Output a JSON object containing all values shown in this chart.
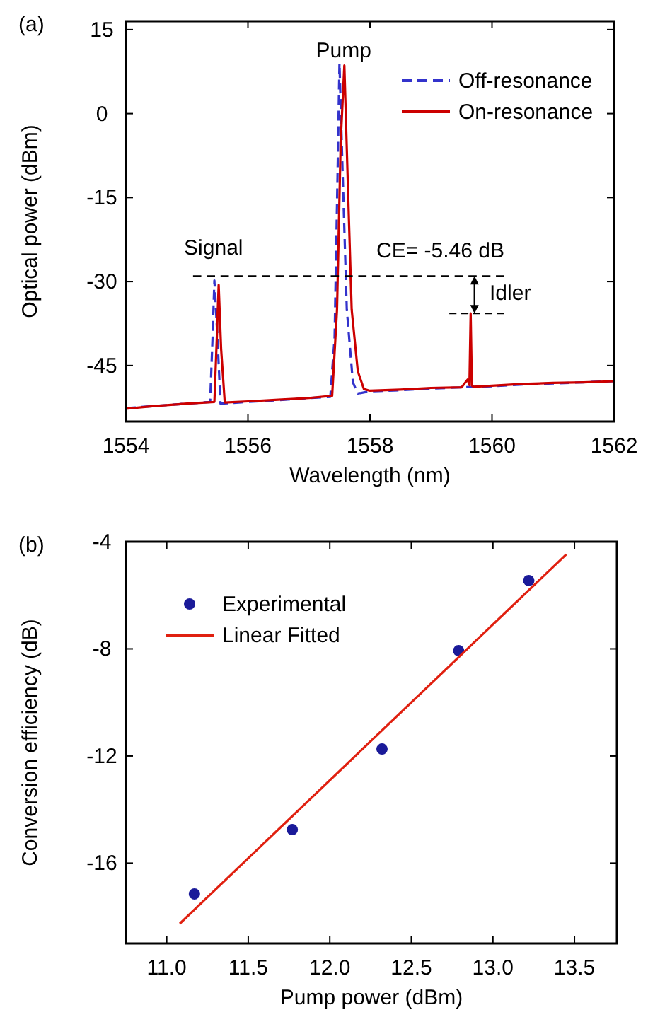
{
  "chart_data": [
    {
      "type": "line",
      "title": "(a)",
      "xlabel": "Wavelength (nm)",
      "ylabel": "Optical power (dBm)",
      "xlim": [
        1554,
        1562
      ],
      "xticks": [
        1554,
        1556,
        1558,
        1560,
        1562
      ],
      "ylim": [
        -55,
        16.5
      ],
      "yticks": [
        15,
        0,
        -15,
        -30,
        -45
      ],
      "legend": "top right",
      "series": [
        {
          "name": "Off-resonance",
          "color": "#3333cc",
          "line_style": "dashed",
          "x": [
            1554,
            1554.5,
            1555,
            1555.38,
            1555.42,
            1555.45,
            1555.5,
            1555.55,
            1556,
            1556.5,
            1557,
            1557.35,
            1557.42,
            1557.47,
            1557.5,
            1557.55,
            1557.62,
            1557.72,
            1557.8,
            1558,
            1558.5,
            1559,
            1559.5,
            1560,
            1560.5,
            1561,
            1561.5,
            1562
          ],
          "values": [
            -52.6,
            -52.2,
            -51.8,
            -51.5,
            -40,
            -29.8,
            -40,
            -51.8,
            -51.5,
            -51.2,
            -50.8,
            -50.6,
            -40,
            -10,
            9.0,
            -10,
            -35,
            -48,
            -50.0,
            -49.6,
            -49.4,
            -49.1,
            -48.9,
            -48.7,
            -48.4,
            -48.2,
            -48.0,
            -47.8
          ]
        },
        {
          "name": "On-resonance",
          "color": "#cc0000",
          "line_style": "solid",
          "x": [
            1554,
            1554.5,
            1555,
            1555.45,
            1555.49,
            1555.52,
            1555.56,
            1555.62,
            1556,
            1556.5,
            1557,
            1557.38,
            1557.46,
            1557.52,
            1557.58,
            1557.63,
            1557.7,
            1557.8,
            1557.9,
            1558,
            1558.5,
            1559,
            1559.5,
            1559.6,
            1559.63,
            1559.65,
            1559.67,
            1559.7,
            1560,
            1560.5,
            1561,
            1561.5,
            1562
          ],
          "values": [
            -52.7,
            -52.2,
            -51.8,
            -51.5,
            -40,
            -30.6,
            -42,
            -51.6,
            -51.4,
            -51.1,
            -50.8,
            -50.4,
            -35,
            -5,
            8.6,
            -10,
            -35,
            -46,
            -49.2,
            -49.5,
            -49.3,
            -49.0,
            -48.9,
            -47.5,
            -48.5,
            -35.7,
            -48.6,
            -48.8,
            -48.6,
            -48.3,
            -48.1,
            -48.0,
            -47.8
          ]
        },
        {
          "color": "#000000",
          "line_style": "dashed",
          "x": [
            1555.1,
            1560.2
          ],
          "values": [
            -29,
            -29
          ]
        },
        {
          "color": "#000000",
          "line_style": "dashed",
          "x": [
            1559.3,
            1560.2
          ],
          "values": [
            -35.7,
            -35.7
          ]
        }
      ],
      "annotations": [
        "Pump",
        "Signal",
        "CE= -5.46 dB",
        "Idler"
      ]
    },
    {
      "type": "scatter",
      "title": "(b)",
      "xlabel": "Pump power (dBm)",
      "ylabel": "Conversion efficiency (dB)",
      "xlim": [
        10.75,
        13.76
      ],
      "xticks": [
        {
          "value": 11.0,
          "label": "11.0"
        },
        {
          "value": 11.5,
          "label": "11.5"
        },
        {
          "value": 12.0,
          "label": "12.0"
        },
        {
          "value": 12.5,
          "label": "12.5"
        },
        {
          "value": 13.0,
          "label": "13.0"
        },
        {
          "value": 13.5,
          "label": "13.5"
        }
      ],
      "ylim": [
        -19,
        -4
      ],
      "yticks": [
        -4,
        -8,
        -12,
        -16
      ],
      "legend": "top left",
      "series": [
        {
          "name": "Experimental",
          "marker": "circle",
          "color": "#1a1a99",
          "x": [
            11.17,
            11.77,
            12.32,
            12.79,
            13.22
          ],
          "values": [
            -17.15,
            -14.75,
            -11.74,
            -8.07,
            -5.45
          ]
        },
        {
          "name": "Linear Fitted",
          "type": "line",
          "color": "#e02010",
          "x": [
            11.08,
            13.45
          ],
          "values": [
            -18.26,
            -4.47
          ]
        }
      ]
    }
  ]
}
